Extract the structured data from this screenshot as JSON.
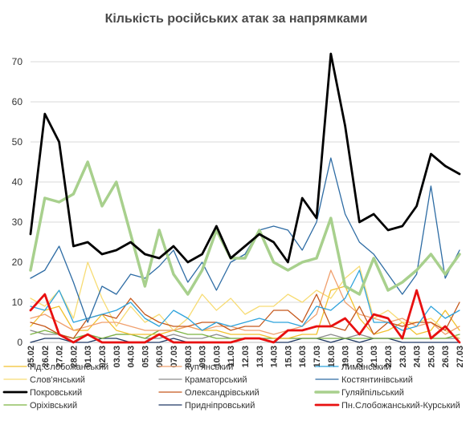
{
  "chart_data": {
    "type": "line",
    "title": "Кількість російських атак за напрямками",
    "xlabel": "",
    "ylabel": "",
    "ylim": [
      0,
      75
    ],
    "yticks": [
      0,
      10,
      20,
      30,
      40,
      50,
      60,
      70
    ],
    "grid": true,
    "legend_position": "bottom",
    "x": [
      "25.02",
      "26.02",
      "27.02",
      "28.02",
      "01.03",
      "02.03",
      "03.03",
      "04.03",
      "05.03",
      "06.03",
      "07.03",
      "08.03",
      "09.03",
      "10.03",
      "11.03",
      "12.03",
      "13.03",
      "14.03",
      "15.03",
      "16.03",
      "17.03",
      "18.03",
      "19.03",
      "20.03",
      "21.03",
      "22.03",
      "23.03",
      "24.03",
      "25.03",
      "26.03",
      "27.03"
    ],
    "series": [
      {
        "name": "Пд.Слобожанський",
        "color": "#f2c12e",
        "width": 1.3,
        "values": [
          4,
          8,
          9,
          3,
          3,
          7,
          3,
          2,
          2,
          2,
          3,
          4,
          3,
          3,
          2,
          2,
          2,
          1,
          1,
          2,
          2,
          13,
          14,
          6,
          2,
          3,
          5,
          2,
          3,
          8,
          3
        ]
      },
      {
        "name": "Куп'янський",
        "color": "#f0a06e",
        "width": 1.3,
        "values": [
          6,
          7,
          5,
          3,
          4,
          5,
          5,
          4,
          3,
          3,
          3,
          4,
          3,
          4,
          4,
          3,
          3,
          2,
          3,
          4,
          7,
          18,
          10,
          7,
          6,
          5,
          6,
          4,
          5,
          2,
          4
        ]
      },
      {
        "name": "Лиманський",
        "color": "#2ea3dc",
        "width": 1.3,
        "values": [
          9,
          8,
          13,
          5,
          6,
          7,
          8,
          10,
          6,
          4,
          8,
          6,
          3,
          5,
          4,
          5,
          6,
          5,
          5,
          4,
          9,
          8,
          11,
          18,
          5,
          5,
          3,
          4,
          9,
          6,
          8
        ]
      },
      {
        "name": "Слов'янський",
        "color": "#f7dc74",
        "width": 1.3,
        "values": [
          11,
          9,
          13,
          6,
          20,
          11,
          4,
          9,
          5,
          7,
          3,
          6,
          12,
          8,
          11,
          7,
          9,
          9,
          12,
          10,
          13,
          11,
          16,
          19,
          6,
          8,
          5,
          5,
          6,
          3,
          1
        ]
      },
      {
        "name": "Краматорський",
        "color": "#8c8c8c",
        "width": 1.3,
        "values": [
          3,
          2,
          2,
          1,
          2,
          1,
          2,
          2,
          1,
          1,
          2,
          1,
          1,
          2,
          1,
          1,
          1,
          1,
          1,
          1,
          1,
          2,
          1,
          2,
          1,
          1,
          1,
          1,
          1,
          1,
          1
        ]
      },
      {
        "name": "Костянтинівський",
        "color": "#2e6ca4",
        "width": 1.3,
        "values": [
          16,
          18,
          24,
          15,
          5,
          14,
          12,
          17,
          16,
          19,
          23,
          15,
          20,
          13,
          20,
          22,
          28,
          29,
          28,
          23,
          30,
          46,
          32,
          25,
          22,
          17,
          12,
          17,
          39,
          16,
          23
        ]
      },
      {
        "name": "Покровський",
        "color": "#000000",
        "width": 2.8,
        "values": [
          27,
          57,
          50,
          24,
          25,
          22,
          23,
          25,
          22,
          21,
          24,
          20,
          22,
          29,
          21,
          24,
          27,
          25,
          20,
          36,
          31,
          72,
          54,
          30,
          32,
          28,
          29,
          34,
          47,
          44,
          42
        ]
      },
      {
        "name": "Олександрівський",
        "color": "#c5581c",
        "width": 1.3,
        "values": [
          5,
          4,
          2,
          1,
          6,
          7,
          6,
          11,
          7,
          5,
          4,
          4,
          5,
          5,
          3,
          4,
          4,
          8,
          8,
          5,
          12,
          4,
          3,
          9,
          2,
          5,
          4,
          5,
          5,
          3,
          10
        ]
      },
      {
        "name": "Гуляйпільський",
        "color": "#a8d08d",
        "width": 3.5,
        "values": [
          18,
          36,
          35,
          37,
          45,
          34,
          40,
          27,
          14,
          28,
          17,
          12,
          18,
          28,
          21,
          21,
          28,
          20,
          18,
          20,
          21,
          31,
          14,
          12,
          21,
          13,
          15,
          18,
          22,
          17,
          22
        ]
      },
      {
        "name": "Оріхівський",
        "color": "#7cb342",
        "width": 1.3,
        "values": [
          2,
          3,
          2,
          1,
          2,
          1,
          2,
          2,
          1,
          3,
          3,
          2,
          2,
          1,
          1,
          1,
          1,
          1,
          1,
          1,
          1,
          1,
          1,
          1,
          1,
          1,
          1,
          1,
          1,
          1,
          2
        ]
      },
      {
        "name": "Придніпровський",
        "color": "#1f3864",
        "width": 1.3,
        "values": [
          0,
          1,
          1,
          0,
          0,
          1,
          1,
          0,
          0,
          0,
          1,
          0,
          0,
          0,
          0,
          1,
          1,
          0,
          0,
          1,
          1,
          0,
          1,
          0,
          1,
          1,
          0,
          0,
          0,
          0,
          0
        ]
      },
      {
        "name": "Пн.Слобожанський-Курський",
        "color": "#e81010",
        "width": 2.8,
        "values": [
          8,
          12,
          2,
          0,
          2,
          0,
          0,
          0,
          0,
          2,
          0,
          0,
          0,
          0,
          0,
          1,
          1,
          0,
          3,
          3,
          4,
          4,
          6,
          2,
          7,
          6,
          1,
          13,
          1,
          4,
          0
        ]
      }
    ]
  }
}
